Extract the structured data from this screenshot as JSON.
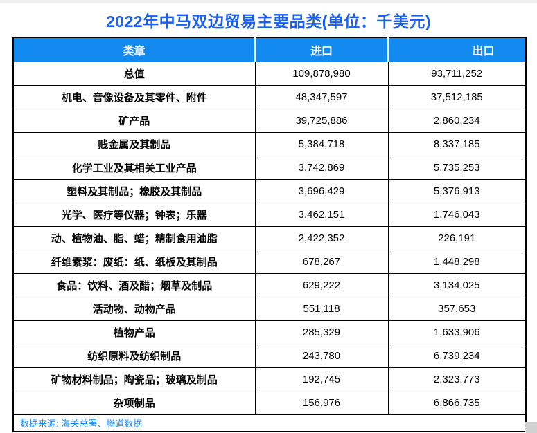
{
  "title": "2022年中马双边贸易主要品类(单位：千美元)",
  "colors": {
    "title_text": "#1a5ff0",
    "header_bg": "#128af0",
    "header_text": "#ffffff",
    "border": "#000000",
    "footer_text": "#1788f0"
  },
  "table": {
    "columns": [
      "类章",
      "进口",
      "出口"
    ],
    "rows": [
      {
        "category": "总值",
        "import": "109,878,980",
        "export": "93,711,252"
      },
      {
        "category": "机电、音像设备及其零件、附件",
        "import": "48,347,597",
        "export": "37,512,185"
      },
      {
        "category": "矿产品",
        "import": "39,725,886",
        "export": "2,860,234"
      },
      {
        "category": "贱金属及其制品",
        "import": "5,384,718",
        "export": "8,337,185"
      },
      {
        "category": "化学工业及其相关工业产品",
        "import": "3,742,869",
        "export": "5,735,253"
      },
      {
        "category": "塑料及其制品；橡胶及其制品",
        "import": "3,696,429",
        "export": "5,376,913"
      },
      {
        "category": "光学、医疗等仪器；钟表；乐器",
        "import": "3,462,151",
        "export": "1,746,043"
      },
      {
        "category": "动、植物油、脂、蜡；精制食用油脂",
        "import": "2,422,352",
        "export": "226,191"
      },
      {
        "category": "纤维素浆：废纸：纸、纸板及其制品",
        "import": "678,267",
        "export": "1,448,298"
      },
      {
        "category": "食品：饮料、酒及醋；烟草及制品",
        "import": "629,222",
        "export": "3,134,025"
      },
      {
        "category": "活动物、动物产品",
        "import": "551,118",
        "export": "357,653"
      },
      {
        "category": "植物产品",
        "import": "285,329",
        "export": "1,633,906"
      },
      {
        "category": "纺织原料及纺织制品",
        "import": "243,780",
        "export": "6,739,234"
      },
      {
        "category": "矿物材料制品；陶瓷品；玻璃及制品",
        "import": "192,745",
        "export": "2,323,773"
      },
      {
        "category": "杂项制品",
        "import": "156,976",
        "export": "6,866,735"
      }
    ]
  },
  "footer": {
    "source": "数据来源: 海关总署、腾道数据"
  },
  "chart_data": {
    "type": "table",
    "title": "2022年中马双边贸易主要品类(单位：千美元)",
    "unit": "千美元",
    "columns": [
      "类章",
      "进口",
      "出口"
    ],
    "rows": [
      [
        "总值",
        109878980,
        93711252
      ],
      [
        "机电、音像设备及其零件、附件",
        48347597,
        37512185
      ],
      [
        "矿产品",
        39725886,
        2860234
      ],
      [
        "贱金属及其制品",
        5384718,
        8337185
      ],
      [
        "化学工业及其相关工业产品",
        3742869,
        5735253
      ],
      [
        "塑料及其制品；橡胶及其制品",
        3696429,
        5376913
      ],
      [
        "光学、医疗等仪器；钟表；乐器",
        3462151,
        1746043
      ],
      [
        "动、植物油、脂、蜡；精制食用油脂",
        2422352,
        226191
      ],
      [
        "纤维素浆：废纸：纸、纸板及其制品",
        678267,
        1448298
      ],
      [
        "食品：饮料、酒及醋；烟草及制品",
        629222,
        3134025
      ],
      [
        "活动物、动物产品",
        551118,
        357653
      ],
      [
        "植物产品",
        285329,
        1633906
      ],
      [
        "纺织原料及纺织制品",
        243780,
        6739234
      ],
      [
        "矿物材料制品；陶瓷品；玻璃及制品",
        192745,
        2323773
      ],
      [
        "杂项制品",
        156976,
        6866735
      ]
    ],
    "source": "数据来源: 海关总署、腾道数据"
  }
}
